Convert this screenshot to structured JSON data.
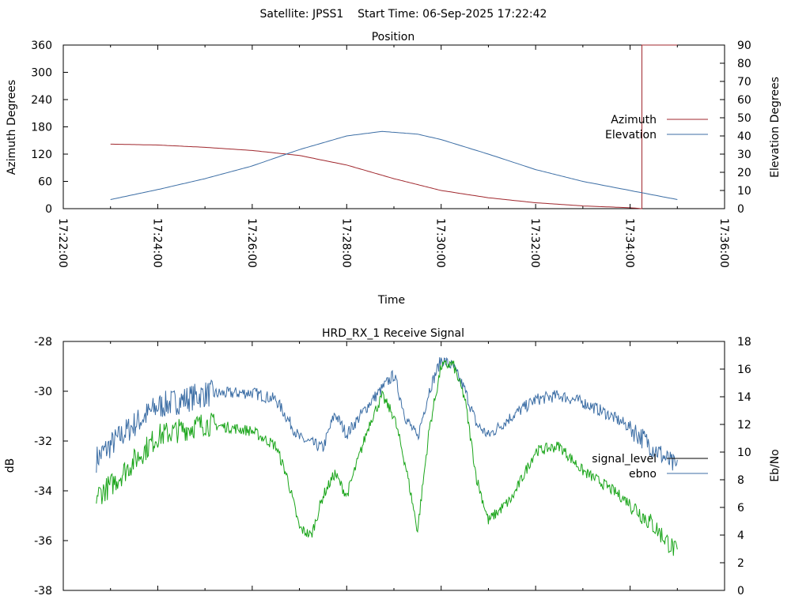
{
  "header": {
    "title": "Satellite: JPSS1    Start Time: 06-Sep-2025 17:22:42"
  },
  "chart_data": [
    {
      "type": "line",
      "title": "Position",
      "xlabel": "Time",
      "ylabel": "Azimuth Degrees",
      "y2label": "Elevation Degrees",
      "xlim": [
        "17:22:00",
        "17:36:00"
      ],
      "ylim": [
        0,
        360
      ],
      "y2lim": [
        0,
        90
      ],
      "x_ticks": [
        "17:22:00",
        "17:24:00",
        "17:26:00",
        "17:28:00",
        "17:30:00",
        "17:32:00",
        "17:34:00",
        "17:36:00"
      ],
      "y_ticks": [
        "0",
        "60",
        "120",
        "180",
        "240",
        "300",
        "360"
      ],
      "y2_ticks": [
        "0",
        "10",
        "20",
        "30",
        "40",
        "50",
        "60",
        "70",
        "80",
        "90"
      ],
      "grid": false,
      "legend_position": "right",
      "series": [
        {
          "name": "Azimuth",
          "axis": "left",
          "color": "#a0272d",
          "points": [
            [
              "17:23:00",
              142
            ],
            [
              "17:24:00",
              140
            ],
            [
              "17:25:00",
              135
            ],
            [
              "17:26:00",
              128
            ],
            [
              "17:27:00",
              117
            ],
            [
              "17:28:00",
              96
            ],
            [
              "17:29:00",
              66
            ],
            [
              "17:30:00",
              40
            ],
            [
              "17:31:00",
              24
            ],
            [
              "17:32:00",
              13
            ],
            [
              "17:33:00",
              6
            ],
            [
              "17:34:00",
              2
            ],
            [
              "17:34:15",
              0
            ],
            [
              "17:34:15",
              360
            ],
            [
              "17:35:00",
              360
            ]
          ]
        },
        {
          "name": "Elevation",
          "axis": "right",
          "color": "#3c6ea5",
          "points": [
            [
              "17:23:00",
              5
            ],
            [
              "17:24:00",
              10.5
            ],
            [
              "17:25:00",
              16.5
            ],
            [
              "17:26:00",
              23.5
            ],
            [
              "17:27:00",
              32.5
            ],
            [
              "17:28:00",
              40
            ],
            [
              "17:28:45",
              42.5
            ],
            [
              "17:29:30",
              41
            ],
            [
              "17:30:00",
              38
            ],
            [
              "17:31:00",
              30
            ],
            [
              "17:32:00",
              21.5
            ],
            [
              "17:33:00",
              15
            ],
            [
              "17:34:00",
              10
            ],
            [
              "17:35:00",
              5
            ]
          ]
        }
      ]
    },
    {
      "type": "line",
      "title": "HRD_RX_1 Receive Signal",
      "xlabel": "",
      "ylabel": "dB",
      "y2label": "Eb/No",
      "xlim": [
        "17:22:00",
        "17:36:00"
      ],
      "ylim": [
        -38,
        -28
      ],
      "y2lim": [
        0,
        18
      ],
      "y_ticks": [
        "-28",
        "-30",
        "-32",
        "-34",
        "-36",
        "-38"
      ],
      "y2_ticks": [
        "18",
        "16",
        "14",
        "12",
        "10",
        "8",
        "6",
        "4",
        "2",
        "0"
      ],
      "grid": false,
      "legend_position": "right",
      "series": [
        {
          "name": "signal_level",
          "axis": "left",
          "color": "#000000",
          "points": []
        },
        {
          "name": "ebno",
          "axis": "right",
          "color": "#3c6ea5",
          "points": [
            [
              "17:22:42",
              9.5
            ],
            [
              "17:23:00",
              10.5
            ],
            [
              "17:23:30",
              12
            ],
            [
              "17:24:00",
              13.3
            ],
            [
              "17:25:00",
              14.2
            ],
            [
              "17:26:00",
              14.3
            ],
            [
              "17:26:30",
              13.8
            ],
            [
              "17:27:00",
              11
            ],
            [
              "17:27:30",
              10.3
            ],
            [
              "17:27:45",
              12.8
            ],
            [
              "17:28:00",
              11.3
            ],
            [
              "17:28:30",
              13.6
            ],
            [
              "17:29:00",
              15.6
            ],
            [
              "17:29:15",
              12.5
            ],
            [
              "17:29:30",
              11
            ],
            [
              "17:29:45",
              14.5
            ],
            [
              "17:30:00",
              16.7
            ],
            [
              "17:30:15",
              16.2
            ],
            [
              "17:30:30",
              14.5
            ],
            [
              "17:30:45",
              12
            ],
            [
              "17:31:00",
              11.2
            ],
            [
              "17:31:30",
              12.6
            ],
            [
              "17:32:00",
              13.8
            ],
            [
              "17:32:30",
              14.1
            ],
            [
              "17:33:00",
              13.6
            ],
            [
              "17:33:30",
              12.8
            ],
            [
              "17:34:00",
              11.8
            ],
            [
              "17:34:30",
              10.3
            ],
            [
              "17:35:00",
              8.8
            ]
          ]
        },
        {
          "name": "",
          "axis": "left",
          "color": "#1aa51a",
          "points": [
            [
              "17:22:42",
              -34.2
            ],
            [
              "17:23:00",
              -33.8
            ],
            [
              "17:23:30",
              -32.8
            ],
            [
              "17:24:00",
              -31.8
            ],
            [
              "17:25:00",
              -31.3
            ],
            [
              "17:26:00",
              -31.6
            ],
            [
              "17:26:30",
              -32.2
            ],
            [
              "17:26:45",
              -33.5
            ],
            [
              "17:27:00",
              -35.5
            ],
            [
              "17:27:15",
              -35.8
            ],
            [
              "17:27:30",
              -34.2
            ],
            [
              "17:27:45",
              -33.3
            ],
            [
              "17:28:00",
              -34.2
            ],
            [
              "17:28:30",
              -31.2
            ],
            [
              "17:28:45",
              -30.2
            ],
            [
              "17:29:00",
              -31
            ],
            [
              "17:29:15",
              -33
            ],
            [
              "17:29:30",
              -35.6
            ],
            [
              "17:29:45",
              -31.5
            ],
            [
              "17:30:00",
              -29
            ],
            [
              "17:30:15",
              -28.9
            ],
            [
              "17:30:30",
              -30.3
            ],
            [
              "17:30:45",
              -33.5
            ],
            [
              "17:31:00",
              -35.2
            ],
            [
              "17:31:30",
              -34.3
            ],
            [
              "17:32:00",
              -32.4
            ],
            [
              "17:32:30",
              -32.2
            ],
            [
              "17:33:00",
              -33.2
            ],
            [
              "17:33:30",
              -33.8
            ],
            [
              "17:34:00",
              -34.5
            ],
            [
              "17:34:30",
              -35.4
            ],
            [
              "17:35:00",
              -36.5
            ]
          ]
        }
      ]
    }
  ]
}
